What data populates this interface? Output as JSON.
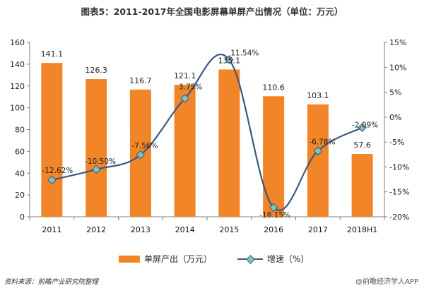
{
  "colors": {
    "bar": "#F28527",
    "line": "#3A5A80",
    "marker_fill": "#7FC4BE",
    "marker_stroke": "#3A5A80",
    "grid": "#D9D9D9"
  },
  "chart_data": {
    "type": "bar+line",
    "title": "图表5：2011-2017年全国电影屏幕单屏产出情况（单位：万元）",
    "categories": [
      "2011",
      "2012",
      "2013",
      "2014",
      "2015",
      "2016",
      "2017",
      "2018H1"
    ],
    "series": [
      {
        "name": "单屏产出（万元）",
        "type": "bar",
        "axis": "left",
        "values": [
          141.1,
          126.3,
          116.7,
          121.1,
          135.1,
          110.6,
          103.1,
          57.6
        ],
        "labels": [
          "141.1",
          "126.3",
          "116.7",
          "121.1",
          "135.1",
          "110.6",
          "103.1",
          "57.6"
        ]
      },
      {
        "name": "增速（%）",
        "type": "line",
        "axis": "right",
        "values": [
          -12.62,
          -10.5,
          -7.56,
          3.75,
          11.54,
          -18.15,
          -6.78,
          -2.09
        ],
        "labels": [
          "-12.62%",
          "-10.50%",
          "-7.56%",
          "3.75%",
          "11.54%",
          "-18.15%",
          "-6.78%",
          "-2.09%"
        ]
      }
    ],
    "y_left": {
      "min": 0,
      "max": 160,
      "ticks": [
        "0",
        "20",
        "40",
        "60",
        "80",
        "100",
        "120",
        "140",
        "160"
      ]
    },
    "y_right": {
      "min": -20,
      "max": 15,
      "ticks": [
        "-20%",
        "-15%",
        "-10%",
        "-5%",
        "0%",
        "5%",
        "10%",
        "15%"
      ]
    },
    "grid": false,
    "legend": "bottom"
  },
  "legend": {
    "bar_label": "单屏产出（万元）",
    "line_label": "增速（%）"
  },
  "footer": {
    "source": "资料来源：前瞻产业研究院整理",
    "watermark": "@前瞻经济学人APP"
  }
}
